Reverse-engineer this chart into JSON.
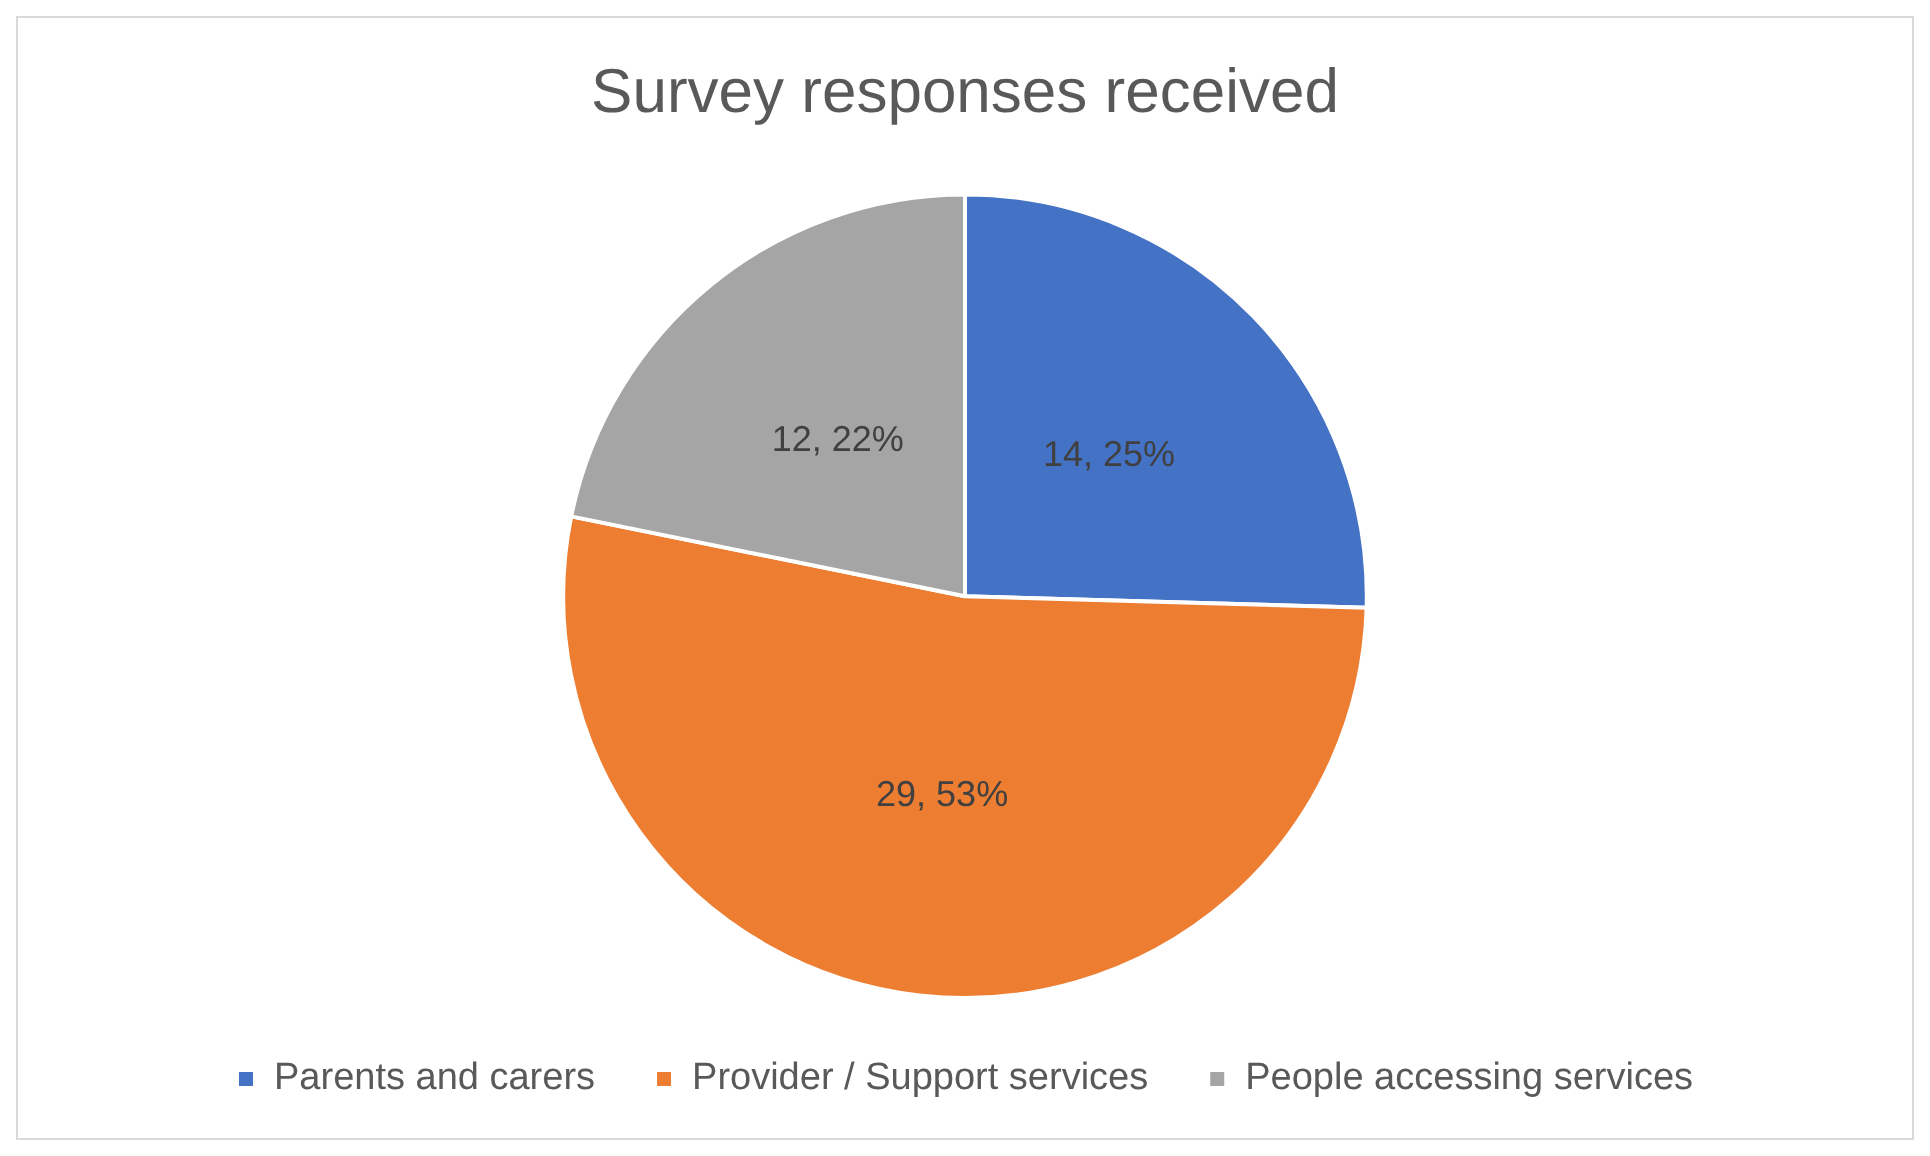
{
  "chart_data": {
    "type": "pie",
    "title": "Survey responses received",
    "categories": [
      "Parents and carers",
      "Provider / Support services",
      "People accessing services"
    ],
    "values": [
      14,
      29,
      12
    ],
    "colors": [
      "#4472c4",
      "#ed7d31",
      "#a5a5a5"
    ],
    "value_labels": [
      "14, 25%",
      "29, 53%",
      "12, 22%"
    ],
    "legend": "bottom"
  }
}
